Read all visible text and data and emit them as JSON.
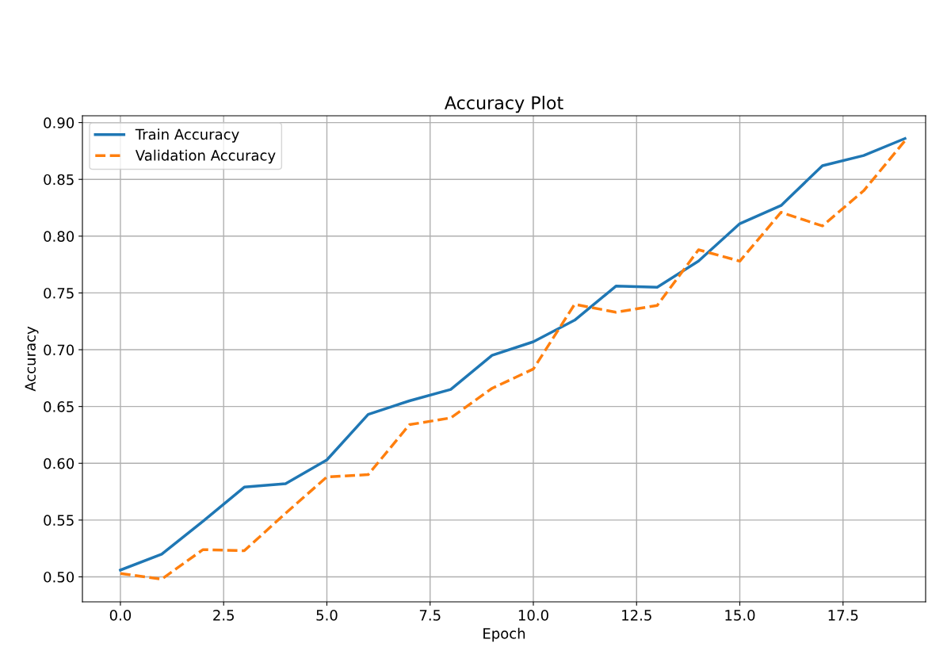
{
  "chart_data": {
    "type": "line",
    "title": "Accuracy Plot",
    "xlabel": "Epoch",
    "ylabel": "Accuracy",
    "x": [
      0,
      1,
      2,
      3,
      4,
      5,
      6,
      7,
      8,
      9,
      10,
      11,
      12,
      13,
      14,
      15,
      16,
      17,
      18,
      19
    ],
    "series": [
      {
        "name": "Train Accuracy",
        "color": "#1f77b4",
        "line_style": "solid",
        "values": [
          0.506,
          0.52,
          0.549,
          0.579,
          0.582,
          0.603,
          0.643,
          0.655,
          0.665,
          0.695,
          0.707,
          0.726,
          0.756,
          0.755,
          0.778,
          0.811,
          0.827,
          0.862,
          0.871,
          0.886
        ]
      },
      {
        "name": "Validation Accuracy",
        "color": "#ff7f0e",
        "line_style": "dashed",
        "values": [
          0.503,
          0.498,
          0.524,
          0.523,
          0.556,
          0.588,
          0.59,
          0.634,
          0.64,
          0.666,
          0.683,
          0.74,
          0.733,
          0.739,
          0.788,
          0.778,
          0.821,
          0.809,
          0.84,
          0.884
        ]
      }
    ],
    "xlim": [
      -0.92,
      19.5
    ],
    "ylim": [
      0.478,
      0.906
    ],
    "xticks": [
      {
        "value": 0,
        "label": "0.0"
      },
      {
        "value": 2.5,
        "label": "2.5"
      },
      {
        "value": 5,
        "label": "5.0"
      },
      {
        "value": 7.5,
        "label": "7.5"
      },
      {
        "value": 10,
        "label": "10.0"
      },
      {
        "value": 12.5,
        "label": "12.5"
      },
      {
        "value": 15,
        "label": "15.0"
      },
      {
        "value": 17.5,
        "label": "17.5"
      }
    ],
    "yticks": [
      {
        "value": 0.5,
        "label": "0.50"
      },
      {
        "value": 0.55,
        "label": "0.55"
      },
      {
        "value": 0.6,
        "label": "0.60"
      },
      {
        "value": 0.65,
        "label": "0.65"
      },
      {
        "value": 0.7,
        "label": "0.70"
      },
      {
        "value": 0.75,
        "label": "0.75"
      },
      {
        "value": 0.8,
        "label": "0.80"
      },
      {
        "value": 0.85,
        "label": "0.85"
      },
      {
        "value": 0.9,
        "label": "0.90"
      }
    ],
    "grid": true,
    "legend": "top left"
  }
}
